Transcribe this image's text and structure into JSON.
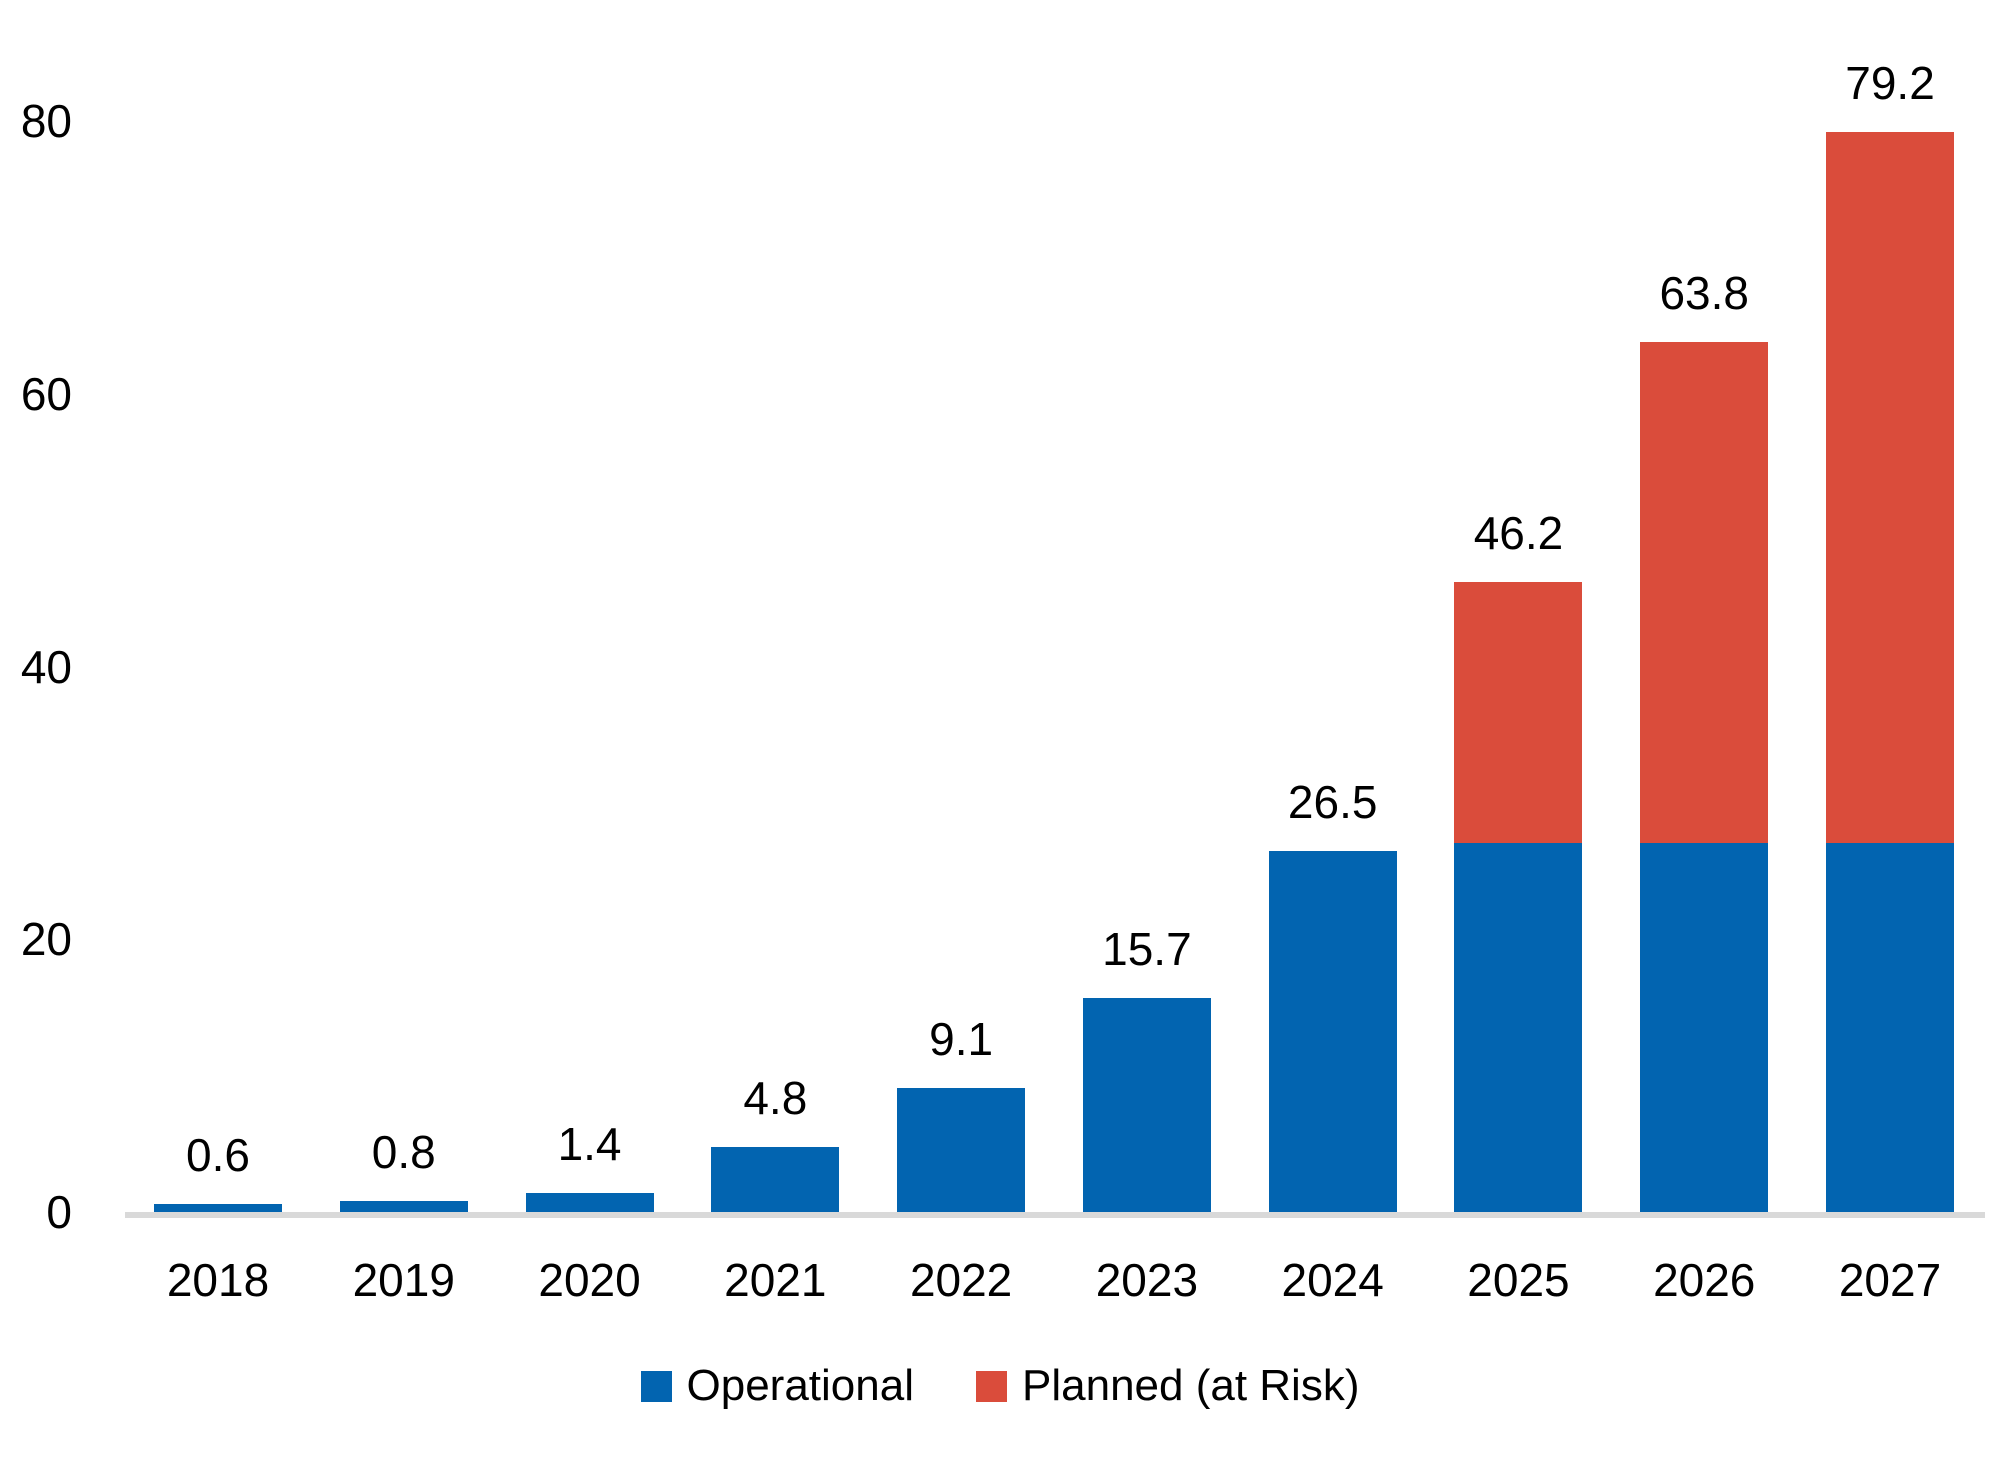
{
  "chart_data": {
    "type": "bar",
    "stacked": true,
    "title": "",
    "categories": [
      "2018",
      "2019",
      "2020",
      "2021",
      "2022",
      "2023",
      "2024",
      "2025",
      "2026",
      "2027"
    ],
    "series": [
      {
        "name": "Operational",
        "color": "#0264b0",
        "values": [
          0.6,
          0.8,
          1.4,
          4.8,
          9.1,
          15.7,
          26.5,
          27.1,
          27.1,
          27.1
        ]
      },
      {
        "name": "Planned (at Risk)",
        "color": "#da4c3b",
        "values": [
          0,
          0,
          0,
          0,
          0,
          0,
          0,
          19.1,
          36.7,
          52.1
        ]
      }
    ],
    "total_labels": [
      "0.6",
      "0.8",
      "1.4",
      "4.8",
      "9.1",
      "15.7",
      "26.5",
      "46.2",
      "63.8",
      "79.2"
    ],
    "y_axis": {
      "ticks": [
        0,
        20,
        40,
        60,
        80
      ],
      "max": 80
    },
    "grid": false,
    "legend_position": "bottom",
    "axis_line_color": "#d9d9d9",
    "text_color": "#000000"
  }
}
